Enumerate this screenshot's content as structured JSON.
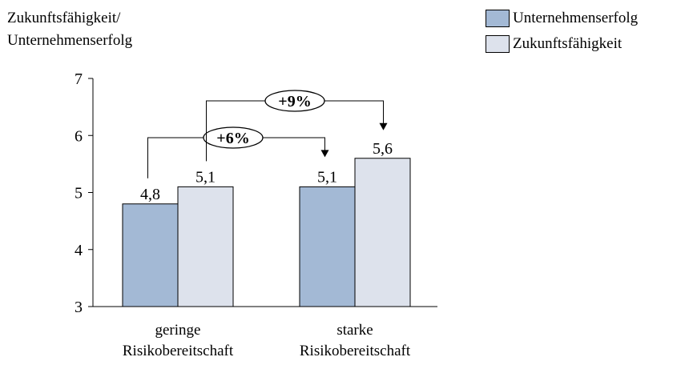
{
  "chart_data": {
    "type": "bar",
    "ylabel_lines": [
      "Zukunftsfähigkeit/",
      "Unternehmenserfolg"
    ],
    "categories": [
      [
        "geringe",
        "Risikobereitschaft"
      ],
      [
        "starke",
        "Risikobereitschaft"
      ]
    ],
    "series": [
      {
        "name": "Unternehmenserfolg",
        "color": "#a3b9d5",
        "values": [
          4.8,
          5.1
        ],
        "labels": [
          "4,8",
          "5,1"
        ]
      },
      {
        "name": "Zukunftsfähigkeit",
        "color": "#dde2ec",
        "values": [
          5.1,
          5.6
        ],
        "labels": [
          "5,1",
          "5,6"
        ]
      }
    ],
    "ylim": [
      3,
      7
    ],
    "yticks": [
      "3",
      "4",
      "5",
      "6",
      "7"
    ],
    "grid": false,
    "legend_position": "top-right",
    "annotations": [
      {
        "text": "+6%",
        "from": {
          "category": 0,
          "series": 0
        },
        "to": {
          "category": 1,
          "series": 0
        }
      },
      {
        "text": "+9%",
        "from": {
          "category": 0,
          "series": 1
        },
        "to": {
          "category": 1,
          "series": 1
        }
      }
    ]
  }
}
